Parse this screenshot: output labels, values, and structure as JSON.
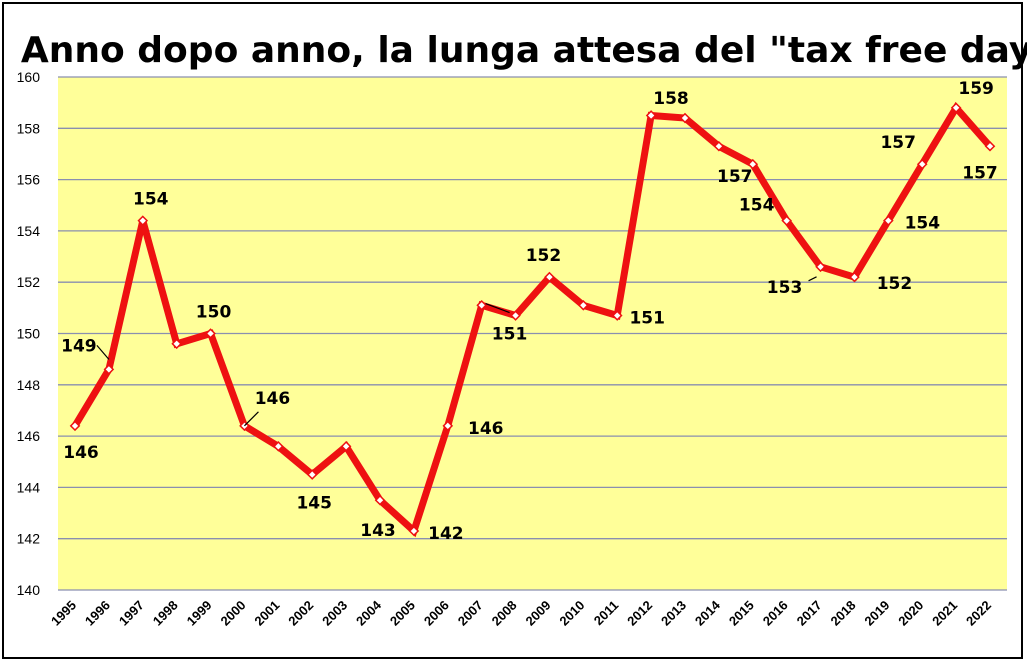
{
  "chart_data": {
    "type": "line",
    "title": "Anno dopo anno, la lunga attesa del \"tax free day\"",
    "xlabel": "",
    "ylabel": "",
    "ylim": [
      140,
      160
    ],
    "y_ticks": [
      "140",
      "142",
      "144",
      "146",
      "148",
      "150",
      "152",
      "154",
      "156",
      "158",
      "160"
    ],
    "grid": true,
    "legend": "none",
    "colors": {
      "plot_background": "#ffff99",
      "line": "#ee1111",
      "marker_fill": "#ffffff",
      "gridline": "#8a8fb0"
    },
    "categories": [
      "1995",
      "1996",
      "1997",
      "1998",
      "1999",
      "2000",
      "2001",
      "2002",
      "2003",
      "2004",
      "2005",
      "2006",
      "2007",
      "2008",
      "2009",
      "2010",
      "2011",
      "2012",
      "2013",
      "2014",
      "2015",
      "2016",
      "2017",
      "2018",
      "2019",
      "2020",
      "2021",
      "2022"
    ],
    "values": [
      146.4,
      148.6,
      154.4,
      149.6,
      150.0,
      146.4,
      145.6,
      144.5,
      145.6,
      143.5,
      142.3,
      146.4,
      151.1,
      150.7,
      152.2,
      151.1,
      150.7,
      158.5,
      158.4,
      157.3,
      156.6,
      154.4,
      152.6,
      152.2,
      154.4,
      156.6,
      158.8,
      157.3
    ],
    "data_labels": [
      {
        "year": "1995",
        "text": "146"
      },
      {
        "year": "1996",
        "text": "149"
      },
      {
        "year": "1997",
        "text": "154"
      },
      {
        "year": "1999",
        "text": "150"
      },
      {
        "year": "2000",
        "text": "146"
      },
      {
        "year": "2002",
        "text": "145"
      },
      {
        "year": "2004",
        "text": "143"
      },
      {
        "year": "2005",
        "text": "142"
      },
      {
        "year": "2006",
        "text": "146"
      },
      {
        "year": "2008",
        "text": "151"
      },
      {
        "year": "2009",
        "text": "152"
      },
      {
        "year": "2011",
        "text": "151"
      },
      {
        "year": "2013",
        "text": "158"
      },
      {
        "year": "2015",
        "text": "157"
      },
      {
        "year": "2016",
        "text": "154"
      },
      {
        "year": "2017",
        "text": "153"
      },
      {
        "year": "2018",
        "text": "152"
      },
      {
        "year": "2019",
        "text": "154"
      },
      {
        "year": "2020",
        "text": "157"
      },
      {
        "year": "2021",
        "text": "159"
      },
      {
        "year": "2022",
        "text": "157"
      }
    ]
  }
}
